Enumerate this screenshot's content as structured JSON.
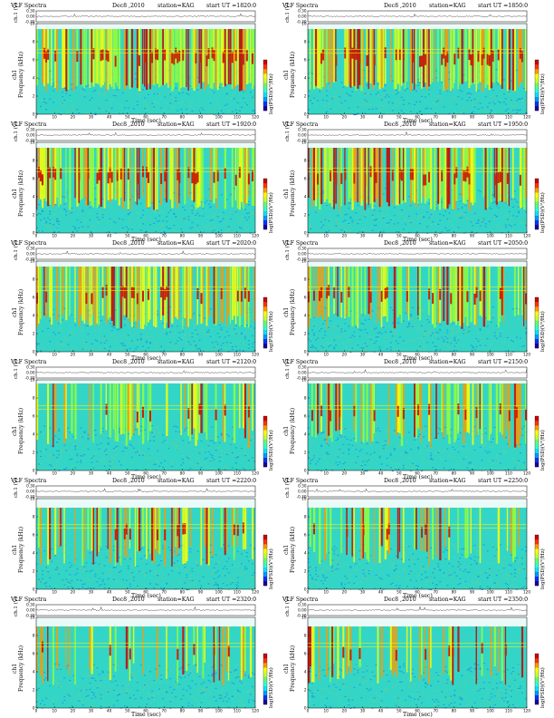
{
  "page": {
    "background": "#ffffff"
  },
  "colors": {
    "colorbar": [
      "#1a0099",
      "#0033ff",
      "#0099ff",
      "#00e5ff",
      "#33ffcc",
      "#66ff66",
      "#ccff33",
      "#ffff00",
      "#ff9900",
      "#ff3300",
      "#cc0000"
    ],
    "spectrogram_background": "#33d6c6",
    "trace": "#000000"
  },
  "chart_data": [
    {
      "type": "heatmap",
      "title": "VLF Spectra",
      "date": "Dec8 ,2010",
      "station": "station=KAG",
      "start": "start  UT  =1820:0",
      "trace_label": "ch.1 (V)",
      "trace_ticks": [
        "0.30",
        "0.00",
        "-0.30"
      ],
      "ylabel": "Frequency  (kHz)",
      "channel_label": "ch1",
      "ylim": [
        0,
        10
      ],
      "yticks": [
        "0",
        "2",
        "4",
        "6",
        "8",
        "10"
      ],
      "xlabel": "Time  (sec)",
      "xlim": [
        0,
        120
      ],
      "xticks": [
        "0",
        "10",
        "20",
        "30",
        "40",
        "50",
        "60",
        "70",
        "80",
        "90",
        "100",
        "110",
        "120"
      ],
      "colorbar_label": "log(PSD)(V²/Hz)",
      "activity": 0.85,
      "active_top_khz": 9.4
    },
    {
      "type": "heatmap",
      "title": "VLF Spectra",
      "date": "Dec8 ,2010",
      "station": "station=KAG",
      "start": "start  UT  =1850:0",
      "trace_label": "ch.1 (V)",
      "trace_ticks": [
        "0.30",
        "0.00",
        "-0.30"
      ],
      "ylabel": "Frequency  (kHz)",
      "channel_label": "ch1",
      "ylim": [
        0,
        10
      ],
      "yticks": [
        "0",
        "2",
        "4",
        "6",
        "8",
        "10"
      ],
      "xlabel": "Time  (sec)",
      "xlim": [
        0,
        120
      ],
      "xticks": [
        "0",
        "10",
        "20",
        "30",
        "40",
        "50",
        "60",
        "70",
        "80",
        "90",
        "100",
        "110",
        "120"
      ],
      "colorbar_label": "log(PSD)(V²/Hz)",
      "activity": 0.82,
      "active_top_khz": 9.4
    },
    {
      "type": "heatmap",
      "title": "VLF Spectra",
      "date": "Dec8 ,2010",
      "station": "station=KAG",
      "start": "start  UT  =1920:0",
      "trace_label": "ch.1 (V)",
      "trace_ticks": [
        "0.30",
        "0.00",
        "-0.30"
      ],
      "ylabel": "Frequency  (kHz)",
      "channel_label": "ch1",
      "ylim": [
        0,
        10
      ],
      "yticks": [
        "0",
        "2",
        "4",
        "6",
        "8",
        "10"
      ],
      "xlabel": "Time  (sec)",
      "xlim": [
        0,
        120
      ],
      "xticks": [
        "0",
        "10",
        "20",
        "30",
        "40",
        "50",
        "60",
        "70",
        "80",
        "90",
        "100",
        "110",
        "120"
      ],
      "colorbar_label": "log(PSD)(V²/Hz)",
      "activity": 0.7,
      "active_top_khz": 9.4
    },
    {
      "type": "heatmap",
      "title": "VLF Spectra",
      "date": "Dec8 ,2010",
      "station": "station=KAG",
      "start": "start  UT  =1950:0",
      "trace_label": "ch.1 (V)",
      "trace_ticks": [
        "0.30",
        "0.00",
        "-0.30"
      ],
      "ylabel": "Frequency  (kHz)",
      "channel_label": "ch1",
      "ylim": [
        0,
        10
      ],
      "yticks": [
        "0",
        "2",
        "4",
        "6",
        "8",
        "10"
      ],
      "xlabel": "Time  (sec)",
      "xlim": [
        0,
        120
      ],
      "xticks": [
        "0",
        "10",
        "20",
        "30",
        "40",
        "50",
        "60",
        "70",
        "80",
        "90",
        "100",
        "110",
        "120"
      ],
      "colorbar_label": "log(PSD)(V²/Hz)",
      "activity": 0.72,
      "active_top_khz": 9.4
    },
    {
      "type": "heatmap",
      "title": "VLF Spectra",
      "date": "Dec8 ,2010",
      "station": "station=KAG",
      "start": "start  UT  =2020:0",
      "trace_label": "ch.1 (V)",
      "trace_ticks": [
        "0.30",
        "0.00",
        "-0.30"
      ],
      "ylabel": "Frequency  (kHz)",
      "channel_label": "ch1",
      "ylim": [
        0,
        10
      ],
      "yticks": [
        "0",
        "2",
        "4",
        "6",
        "8",
        "10"
      ],
      "xlabel": "Time  (sec)",
      "xlim": [
        0,
        120
      ],
      "xticks": [
        "0",
        "10",
        "20",
        "30",
        "40",
        "50",
        "60",
        "70",
        "80",
        "90",
        "100",
        "110",
        "120"
      ],
      "colorbar_label": "log(PSD)(V²/Hz)",
      "activity": 0.68,
      "active_top_khz": 9.4
    },
    {
      "type": "heatmap",
      "title": "VLF Spectra",
      "date": "Dec8 ,2010",
      "station": "station=KAG",
      "start": "start  UT  =2050:0",
      "trace_label": "ch.1 (V)",
      "trace_ticks": [
        "0.30",
        "0.00",
        "-0.30"
      ],
      "ylabel": "Frequency  (kHz)",
      "channel_label": "ch1",
      "ylim": [
        0,
        10
      ],
      "yticks": [
        "0",
        "2",
        "4",
        "6",
        "8",
        "10"
      ],
      "xlabel": "Time  (sec)",
      "xlim": [
        0,
        120
      ],
      "xticks": [
        "0",
        "10",
        "20",
        "30",
        "40",
        "50",
        "60",
        "70",
        "80",
        "90",
        "100",
        "110",
        "120"
      ],
      "colorbar_label": "log(PSD)(V²/Hz)",
      "activity": 0.62,
      "active_top_khz": 9.4
    },
    {
      "type": "heatmap",
      "title": "VLF Spectra",
      "date": "Dec8 ,2010",
      "station": "station=KAG",
      "start": "start  UT  =2120:0",
      "trace_label": "ch.1 (V)",
      "trace_ticks": [
        "0.30",
        "0.00",
        "-0.30"
      ],
      "ylabel": "Frequency  (kHz)",
      "channel_label": "ch1",
      "ylim": [
        0,
        10
      ],
      "yticks": [
        "0",
        "2",
        "4",
        "6",
        "8",
        "10"
      ],
      "xlabel": "Time  (sec)",
      "xlim": [
        0,
        120
      ],
      "xticks": [
        "0",
        "10",
        "20",
        "30",
        "40",
        "50",
        "60",
        "70",
        "80",
        "90",
        "100",
        "110",
        "120"
      ],
      "colorbar_label": "log(PSD)(V²/Hz)",
      "activity": 0.45,
      "active_top_khz": 9.6
    },
    {
      "type": "heatmap",
      "title": "VLF Spectra",
      "date": "Dec8 ,2010",
      "station": "station=KAG",
      "start": "start  UT  =2150:0",
      "trace_label": "ch.1 (V)",
      "trace_ticks": [
        "0.30",
        "0.00",
        "-0.30"
      ],
      "ylabel": "Frequency  (kHz)",
      "channel_label": "ch1",
      "ylim": [
        0,
        10
      ],
      "yticks": [
        "0",
        "2",
        "4",
        "6",
        "8",
        "10"
      ],
      "xlabel": "Time  (sec)",
      "xlim": [
        0,
        120
      ],
      "xticks": [
        "0",
        "10",
        "20",
        "30",
        "40",
        "50",
        "60",
        "70",
        "80",
        "90",
        "100",
        "110",
        "120"
      ],
      "colorbar_label": "log(PSD)(V²/Hz)",
      "activity": 0.48,
      "active_top_khz": 9.6
    },
    {
      "type": "heatmap",
      "title": "VLF Spectra",
      "date": "Dec8 ,2010",
      "station": "station=KAG",
      "start": "start  UT  =2220:0",
      "trace_label": "ch.1 (V)",
      "trace_ticks": [
        "0.30",
        "0.00",
        "-0.30"
      ],
      "ylabel": "Frequency  (kHz)",
      "channel_label": "ch1",
      "ylim": [
        0,
        10
      ],
      "yticks": [
        "0",
        "2",
        "4",
        "6",
        "8",
        "10"
      ],
      "xlabel": "Time  (sec)",
      "xlim": [
        0,
        120
      ],
      "xticks": [
        "0",
        "10",
        "20",
        "30",
        "40",
        "50",
        "60",
        "70",
        "80",
        "90",
        "100",
        "110",
        "120"
      ],
      "colorbar_label": "log(PSD)(V²/Hz)",
      "activity": 0.42,
      "active_top_khz": 9.0
    },
    {
      "type": "heatmap",
      "title": "VLF Spectra",
      "date": "Dec8 ,2010",
      "station": "station=KAG",
      "start": "start  UT  =2250:0",
      "trace_label": "ch.1 (V)",
      "trace_ticks": [
        "0.30",
        "0.00",
        "-0.30"
      ],
      "ylabel": "Frequency  (kHz)",
      "channel_label": "ch1",
      "ylim": [
        0,
        10
      ],
      "yticks": [
        "0",
        "2",
        "4",
        "6",
        "8",
        "10"
      ],
      "xlabel": "Time  (sec)",
      "xlim": [
        0,
        120
      ],
      "xticks": [
        "0",
        "10",
        "20",
        "30",
        "40",
        "50",
        "60",
        "70",
        "80",
        "90",
        "100",
        "110",
        "120"
      ],
      "colorbar_label": "log(PSD)(V²/Hz)",
      "activity": 0.4,
      "active_top_khz": 9.0
    },
    {
      "type": "heatmap",
      "title": "VLF Spectra",
      "date": "Dec8 ,2010",
      "station": "station=KAG",
      "start": "start  UT  =2320:0",
      "trace_label": "ch.1 (V)",
      "trace_ticks": [
        "0.30",
        "0.00",
        "-0.30"
      ],
      "ylabel": "Frequency  (kHz)",
      "channel_label": "ch1",
      "ylim": [
        0,
        10
      ],
      "yticks": [
        "0",
        "2",
        "4",
        "6",
        "8",
        "10"
      ],
      "xlabel": "Time  (sec)",
      "xlim": [
        0,
        120
      ],
      "xticks": [
        "0",
        "10",
        "20",
        "30",
        "40",
        "50",
        "60",
        "70",
        "80",
        "90",
        "100",
        "110",
        "120"
      ],
      "colorbar_label": "log(PSD)(V²/Hz)",
      "activity": 0.35,
      "active_top_khz": 9.0
    },
    {
      "type": "heatmap",
      "title": "VLF Spectra",
      "date": "Dec8 ,2010",
      "station": "station=KAG",
      "start": "start  UT  =2350:0",
      "trace_label": "ch.1 (V)",
      "trace_ticks": [
        "0.30",
        "0.00",
        "-0.30"
      ],
      "ylabel": "Frequency  (kHz)",
      "channel_label": "ch1",
      "ylim": [
        0,
        10
      ],
      "yticks": [
        "0",
        "2",
        "4",
        "6",
        "8",
        "10"
      ],
      "xlabel": "Time  (sec)",
      "xlim": [
        0,
        120
      ],
      "xticks": [
        "0",
        "10",
        "20",
        "30",
        "40",
        "50",
        "60",
        "70",
        "80",
        "90",
        "100",
        "110",
        "120"
      ],
      "colorbar_label": "log(PSD)(V²/Hz)",
      "activity": 0.36,
      "active_top_khz": 9.0
    }
  ]
}
